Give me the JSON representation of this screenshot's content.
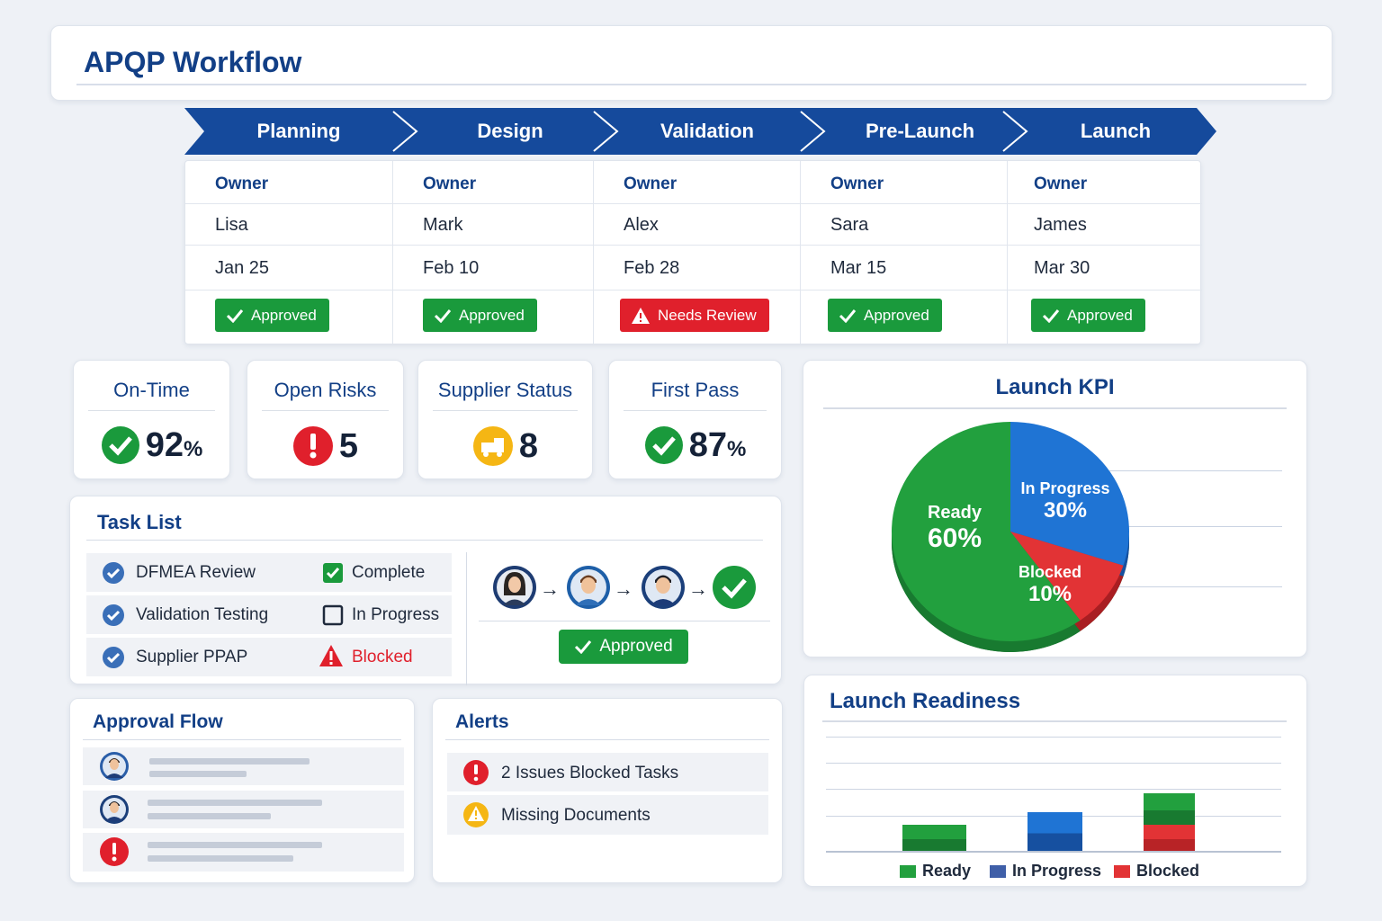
{
  "header": {
    "title": "APQP Workflow"
  },
  "workflow": {
    "steps": [
      "Planning",
      "Design",
      "Validation",
      "Pre-Launch",
      "Launch"
    ],
    "columns": [
      {
        "owner_label": "Owner",
        "owner": "Lisa",
        "date": "Jan 25",
        "status": "Approved",
        "status_type": "ok"
      },
      {
        "owner_label": "Owner",
        "owner": "Mark",
        "date": "Feb 10",
        "status": "Approved",
        "status_type": "ok"
      },
      {
        "owner_label": "Owner",
        "owner": "Alex",
        "date": "Feb 28",
        "status": "Needs Review",
        "status_type": "warn"
      },
      {
        "owner_label": "Owner",
        "owner": "Sara",
        "date": "Mar 15",
        "status": "Approved",
        "status_type": "ok"
      },
      {
        "owner_label": "Owner",
        "owner": "James",
        "date": "Mar 30",
        "status": "Approved",
        "status_type": "ok"
      }
    ]
  },
  "kpis": [
    {
      "title": "On-Time",
      "value": "92",
      "unit": "%",
      "icon": "check-circle-icon"
    },
    {
      "title": "Open Risks",
      "value": "5",
      "unit": "",
      "icon": "exclamation-circle-icon"
    },
    {
      "title": "Supplier Status",
      "value": "8",
      "unit": "",
      "icon": "truck-icon"
    },
    {
      "title": "First Pass",
      "value": "87",
      "unit": "%",
      "icon": "check-circle-icon"
    }
  ],
  "launch_kpi": {
    "title": "Launch KPI",
    "slices": [
      {
        "label": "Ready",
        "percent": "60%",
        "value": 60,
        "color": "#22a03e"
      },
      {
        "label": "In Progress",
        "percent": "30%",
        "value": 30,
        "color": "#1f74d4"
      },
      {
        "label": "Blocked",
        "percent": "10%",
        "value": 10,
        "color": "#e23335"
      }
    ]
  },
  "task_list": {
    "title": "Task List",
    "tasks": [
      {
        "name": "DFMEA Review",
        "status": "Complete"
      },
      {
        "name": "Validation Testing",
        "status": "In Progress"
      },
      {
        "name": "Supplier PPAP",
        "status": "Blocked"
      }
    ],
    "flow_button": "Approved"
  },
  "approval_flow": {
    "title": "Approval Flow"
  },
  "alerts": {
    "title": "Alerts",
    "items": [
      "2 Issues Blocked Tasks",
      "Missing Documents"
    ]
  },
  "launch_readiness": {
    "title": "Launch Readiness",
    "legend": [
      "Ready",
      "In Progress",
      "Blocked"
    ],
    "colors": {
      "ready": "#22a03e",
      "in_progress": "#1f74d4",
      "blocked": "#e23335"
    }
  },
  "colors": {
    "accent": "#123f86",
    "green": "#1a9a3c",
    "red": "#e0202c"
  },
  "chart_data": [
    {
      "type": "pie",
      "title": "Launch KPI",
      "categories": [
        "Ready",
        "In Progress",
        "Blocked"
      ],
      "values": [
        60,
        30,
        10
      ]
    },
    {
      "type": "bar",
      "title": "Launch Readiness",
      "stacked": true,
      "grid": true,
      "legend": "bottom",
      "series": [
        {
          "name": "Ready",
          "values": [
            1,
            0,
            1.2
          ]
        },
        {
          "name": "In Progress",
          "values": [
            0,
            1.5,
            0
          ]
        },
        {
          "name": "Blocked",
          "values": [
            0,
            0,
            1
          ]
        }
      ]
    }
  ]
}
